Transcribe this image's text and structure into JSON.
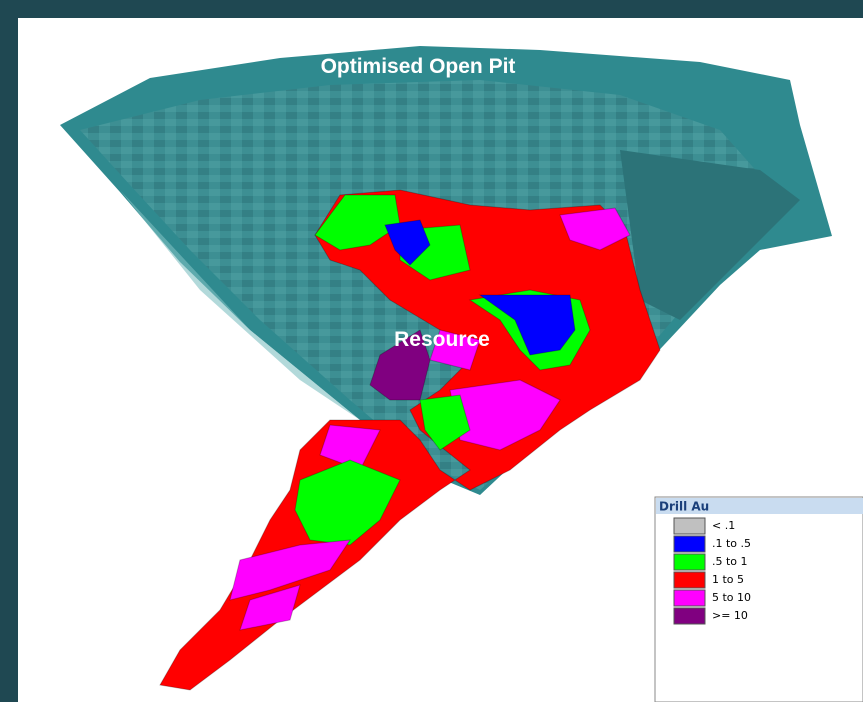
{
  "labels": {
    "pit": "Optimised Open Pit",
    "resource": "Resource"
  },
  "legend": {
    "title": "Drill Au",
    "items": [
      {
        "label": "< .1",
        "color": "#c0c0c0"
      },
      {
        "label": ".1 to .5",
        "color": "#0000ff"
      },
      {
        "label": ".5 to 1",
        "color": "#00ff00"
      },
      {
        "label": "1 to 5",
        "color": "#ff0000"
      },
      {
        "label": "5 to 10",
        "color": "#ff00ff"
      },
      {
        "label": ">= 10",
        "color": "#800080"
      }
    ]
  }
}
